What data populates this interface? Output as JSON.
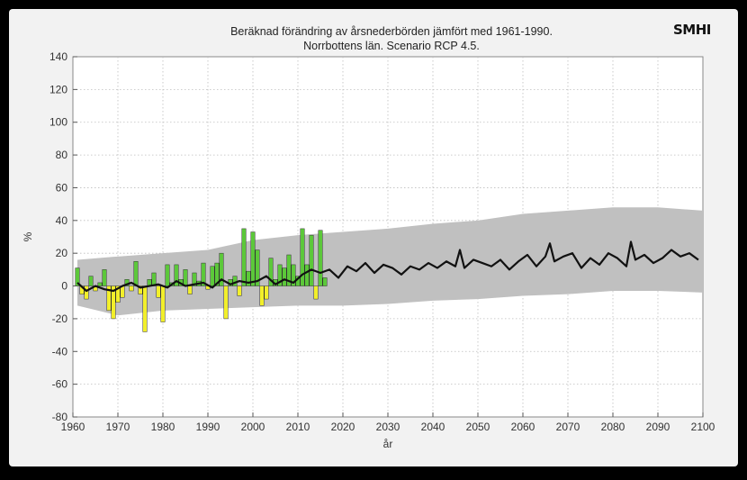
{
  "logo": "SMHI",
  "colors": {
    "background": "#f2f2f2",
    "plot_bg": "#ffffff",
    "band": "#c0c0c0",
    "mean_line": "#111111",
    "bar_positive": "#5cc83a",
    "bar_negative": "#f2ef2a",
    "grid": "#bdbdbd"
  },
  "chart_data": {
    "type": "bar",
    "title": "Beräknad förändring av årsnederbörden jämfört med 1961-1990.",
    "subtitle": "Norrbottens län. Scenario RCP 4.5.",
    "xlabel": "år",
    "ylabel": "%",
    "xlim": [
      1960,
      2100
    ],
    "ylim": [
      -80,
      140
    ],
    "xticks": [
      1960,
      1970,
      1980,
      1990,
      2000,
      2010,
      2020,
      2030,
      2040,
      2050,
      2060,
      2070,
      2080,
      2090,
      2100
    ],
    "yticks": [
      -80,
      -60,
      -40,
      -20,
      0,
      20,
      40,
      60,
      80,
      100,
      120,
      140
    ],
    "grid": true,
    "observed": {
      "years": [
        1961,
        1962,
        1963,
        1964,
        1965,
        1966,
        1967,
        1968,
        1969,
        1970,
        1971,
        1972,
        1973,
        1974,
        1975,
        1976,
        1977,
        1978,
        1979,
        1980,
        1981,
        1982,
        1983,
        1984,
        1985,
        1986,
        1987,
        1988,
        1989,
        1990,
        1991,
        1992,
        1993,
        1994,
        1995,
        1996,
        1997,
        1998,
        1999,
        2000,
        2001,
        2002,
        2003,
        2004,
        2005,
        2006,
        2007,
        2008,
        2009,
        2010,
        2011,
        2012,
        2013,
        2014,
        2015,
        2016
      ],
      "values": [
        11,
        -5,
        -8,
        6,
        -3,
        2,
        10,
        -15,
        -20,
        -10,
        -7,
        4,
        -3,
        15,
        -5,
        -28,
        4,
        8,
        -7,
        -22,
        13,
        2,
        13,
        4,
        10,
        -5,
        8,
        3,
        14,
        -2,
        12,
        14,
        20,
        -20,
        4,
        6,
        -6,
        35,
        9,
        33,
        22,
        -12,
        -8,
        17,
        4,
        13,
        11,
        19,
        13,
        6,
        35,
        13,
        31,
        -8,
        34,
        5
      ]
    },
    "mean": {
      "years": [
        1961,
        1963,
        1965,
        1967,
        1969,
        1971,
        1973,
        1975,
        1977,
        1979,
        1981,
        1983,
        1985,
        1987,
        1989,
        1991,
        1993,
        1995,
        1997,
        1999,
        2001,
        2003,
        2005,
        2007,
        2009,
        2011,
        2013,
        2015,
        2017,
        2019,
        2021,
        2023,
        2025,
        2027,
        2029,
        2031,
        2033,
        2035,
        2037,
        2039,
        2041,
        2043,
        2045,
        2046,
        2047,
        2049,
        2051,
        2053,
        2055,
        2057,
        2059,
        2061,
        2063,
        2065,
        2066,
        2067,
        2069,
        2071,
        2073,
        2075,
        2077,
        2079,
        2081,
        2083,
        2084,
        2085,
        2087,
        2089,
        2091,
        2093,
        2095,
        2097,
        2099
      ],
      "values": [
        2,
        -3,
        0,
        -2,
        -3,
        0,
        2,
        -1,
        0,
        1,
        -1,
        3,
        0,
        1,
        2,
        -1,
        4,
        1,
        3,
        2,
        3,
        6,
        1,
        4,
        2,
        7,
        10,
        8,
        10,
        5,
        12,
        9,
        14,
        8,
        13,
        11,
        7,
        12,
        10,
        14,
        11,
        15,
        12,
        22,
        11,
        16,
        14,
        12,
        16,
        10,
        15,
        19,
        12,
        18,
        26,
        15,
        18,
        20,
        11,
        17,
        13,
        20,
        17,
        12,
        27,
        16,
        19,
        14,
        17,
        22,
        18,
        20,
        16
      ]
    },
    "band": {
      "years": [
        1961,
        1970,
        1980,
        1990,
        2000,
        2010,
        2020,
        2030,
        2040,
        2050,
        2060,
        2070,
        2080,
        2090,
        2100
      ],
      "lower": [
        -12,
        -18,
        -15,
        -14,
        -13,
        -12,
        -12,
        -11,
        -9,
        -8,
        -6,
        -5,
        -3,
        -3,
        -4
      ],
      "upper": [
        16,
        18,
        20,
        22,
        28,
        31,
        33,
        35,
        38,
        40,
        44,
        46,
        48,
        48,
        46
      ]
    }
  }
}
